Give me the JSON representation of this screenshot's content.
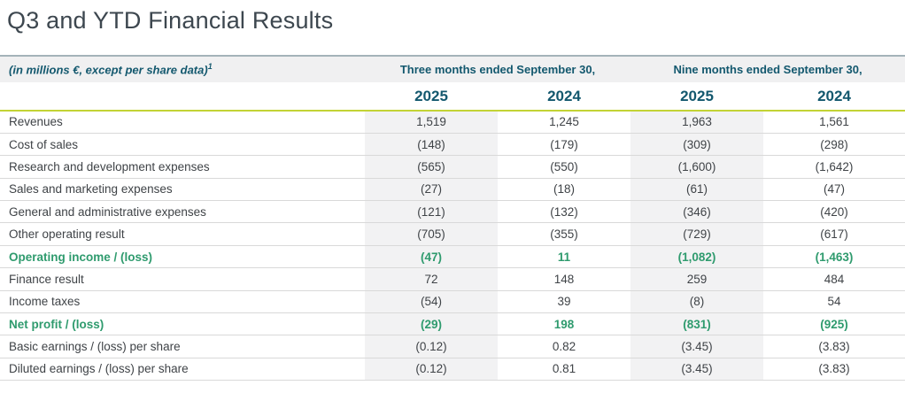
{
  "page": {
    "title": "Q3 and YTD Financial Results"
  },
  "table": {
    "unit_note": "(in millions €, except per share data)",
    "unit_note_footnote": "1",
    "column_groups": [
      {
        "label": "Three months ended September 30,"
      },
      {
        "label": "Nine months ended September 30,"
      }
    ],
    "year_columns": [
      "2025",
      "2024",
      "2025",
      "2024"
    ],
    "rows": [
      {
        "label": "Revenues",
        "values": [
          "1,519",
          "1,245",
          "1,963",
          "1,561"
        ],
        "emphasis": false
      },
      {
        "label": "Cost of sales",
        "values": [
          "(148)",
          "(179)",
          "(309)",
          "(298)"
        ],
        "emphasis": false
      },
      {
        "label": "Research and development expenses",
        "values": [
          "(565)",
          "(550)",
          "(1,600)",
          "(1,642)"
        ],
        "emphasis": false
      },
      {
        "label": "Sales and marketing expenses",
        "values": [
          "(27)",
          "(18)",
          "(61)",
          "(47)"
        ],
        "emphasis": false
      },
      {
        "label": "General and administrative expenses",
        "values": [
          "(121)",
          "(132)",
          "(346)",
          "(420)"
        ],
        "emphasis": false
      },
      {
        "label": "Other operating result",
        "values": [
          "(705)",
          "(355)",
          "(729)",
          "(617)"
        ],
        "emphasis": false
      },
      {
        "label": "Operating income / (loss)",
        "values": [
          "(47)",
          "11",
          "(1,082)",
          "(1,463)"
        ],
        "emphasis": true
      },
      {
        "label": "Finance result",
        "values": [
          "72",
          "148",
          "259",
          "484"
        ],
        "emphasis": false
      },
      {
        "label": "Income taxes",
        "values": [
          "(54)",
          "39",
          "(8)",
          "54"
        ],
        "emphasis": false
      },
      {
        "label": "Net profit / (loss)",
        "values": [
          "(29)",
          "198",
          "(831)",
          "(925)"
        ],
        "emphasis": true
      },
      {
        "label": "Basic earnings / (loss) per share",
        "values": [
          "(0.12)",
          "0.82",
          "(3.45)",
          "(3.83)"
        ],
        "emphasis": false
      },
      {
        "label": "Diluted earnings / (loss) per share",
        "values": [
          "(0.12)",
          "0.81",
          "(3.45)",
          "(3.83)"
        ],
        "emphasis": false
      }
    ]
  },
  "colors": {
    "accent_teal": "#13586e",
    "accent_green": "#2f9b6e",
    "accent_chartreuse": "#c3d335",
    "title_text": "#3d474f",
    "body_text": "#3f4347",
    "band_background": "#f2f2f3",
    "header_background": "#f0f0f1"
  }
}
